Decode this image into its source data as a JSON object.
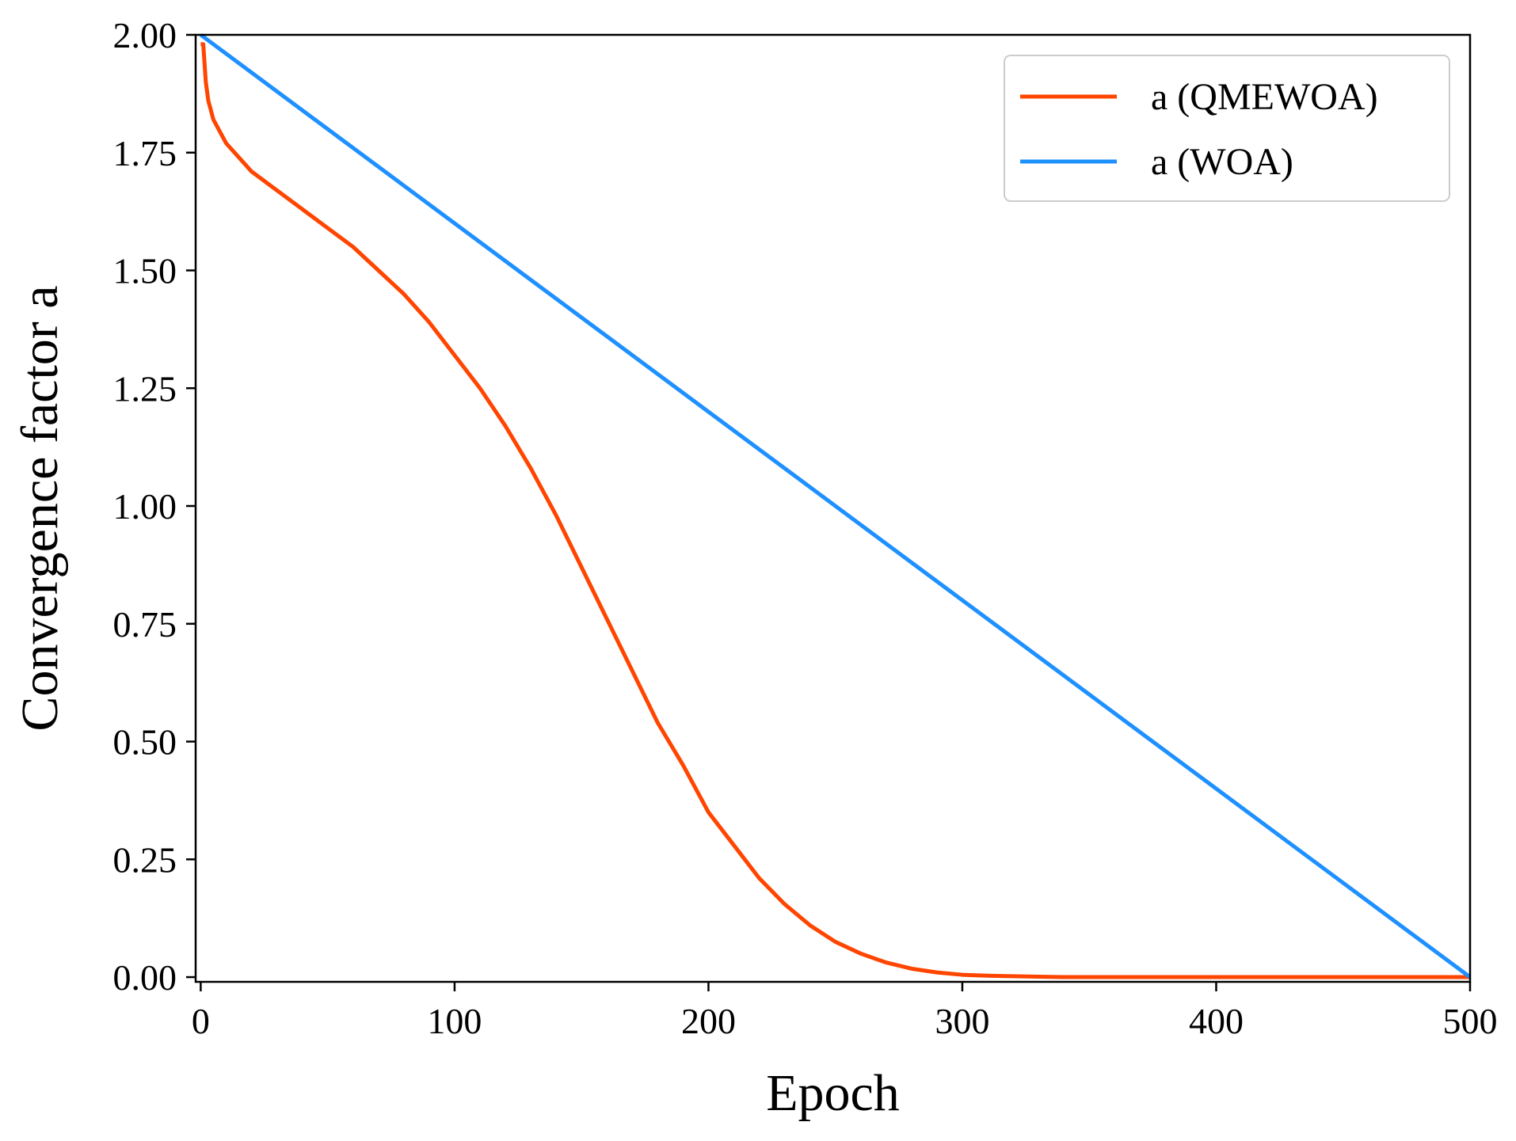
{
  "chart_data": {
    "type": "line",
    "title": "",
    "xlabel": "Epoch",
    "ylabel": "Convergence factor a",
    "xlim": [
      -2,
      500
    ],
    "ylim": [
      -0.01,
      2.0
    ],
    "xticks": [
      0,
      100,
      200,
      300,
      400,
      500
    ],
    "xtick_labels": [
      "0",
      "100",
      "200",
      "300",
      "400",
      "500"
    ],
    "yticks": [
      0.0,
      0.25,
      0.5,
      0.75,
      1.0,
      1.25,
      1.5,
      1.75,
      2.0
    ],
    "ytick_labels": [
      "0.00",
      "0.25",
      "0.50",
      "0.75",
      "1.00",
      "1.25",
      "1.50",
      "1.75",
      "2.00"
    ],
    "grid": false,
    "legend_position": "top-right",
    "series": [
      {
        "name": "a (QMEWOA)",
        "color": "#ff4500",
        "x": [
          0,
          1,
          2,
          3,
          5,
          10,
          15,
          20,
          30,
          40,
          50,
          60,
          70,
          80,
          90,
          100,
          110,
          120,
          130,
          140,
          150,
          160,
          170,
          180,
          190,
          200,
          210,
          220,
          230,
          240,
          250,
          260,
          270,
          280,
          290,
          300,
          310,
          320,
          330,
          340,
          350,
          400,
          450,
          500
        ],
        "y": [
          1.98,
          1.98,
          1.9,
          1.86,
          1.82,
          1.77,
          1.74,
          1.71,
          1.67,
          1.63,
          1.59,
          1.55,
          1.5,
          1.45,
          1.39,
          1.32,
          1.25,
          1.17,
          1.08,
          0.98,
          0.87,
          0.76,
          0.65,
          0.54,
          0.45,
          0.35,
          0.28,
          0.21,
          0.155,
          0.11,
          0.075,
          0.05,
          0.031,
          0.018,
          0.01,
          0.005,
          0.003,
          0.002,
          0.001,
          0.0,
          0.0,
          0.0,
          0.0,
          0.0
        ]
      },
      {
        "name": "a (WOA)",
        "color": "#1e90ff",
        "x": [
          0,
          500
        ],
        "y": [
          2.0,
          0.0
        ]
      }
    ]
  }
}
